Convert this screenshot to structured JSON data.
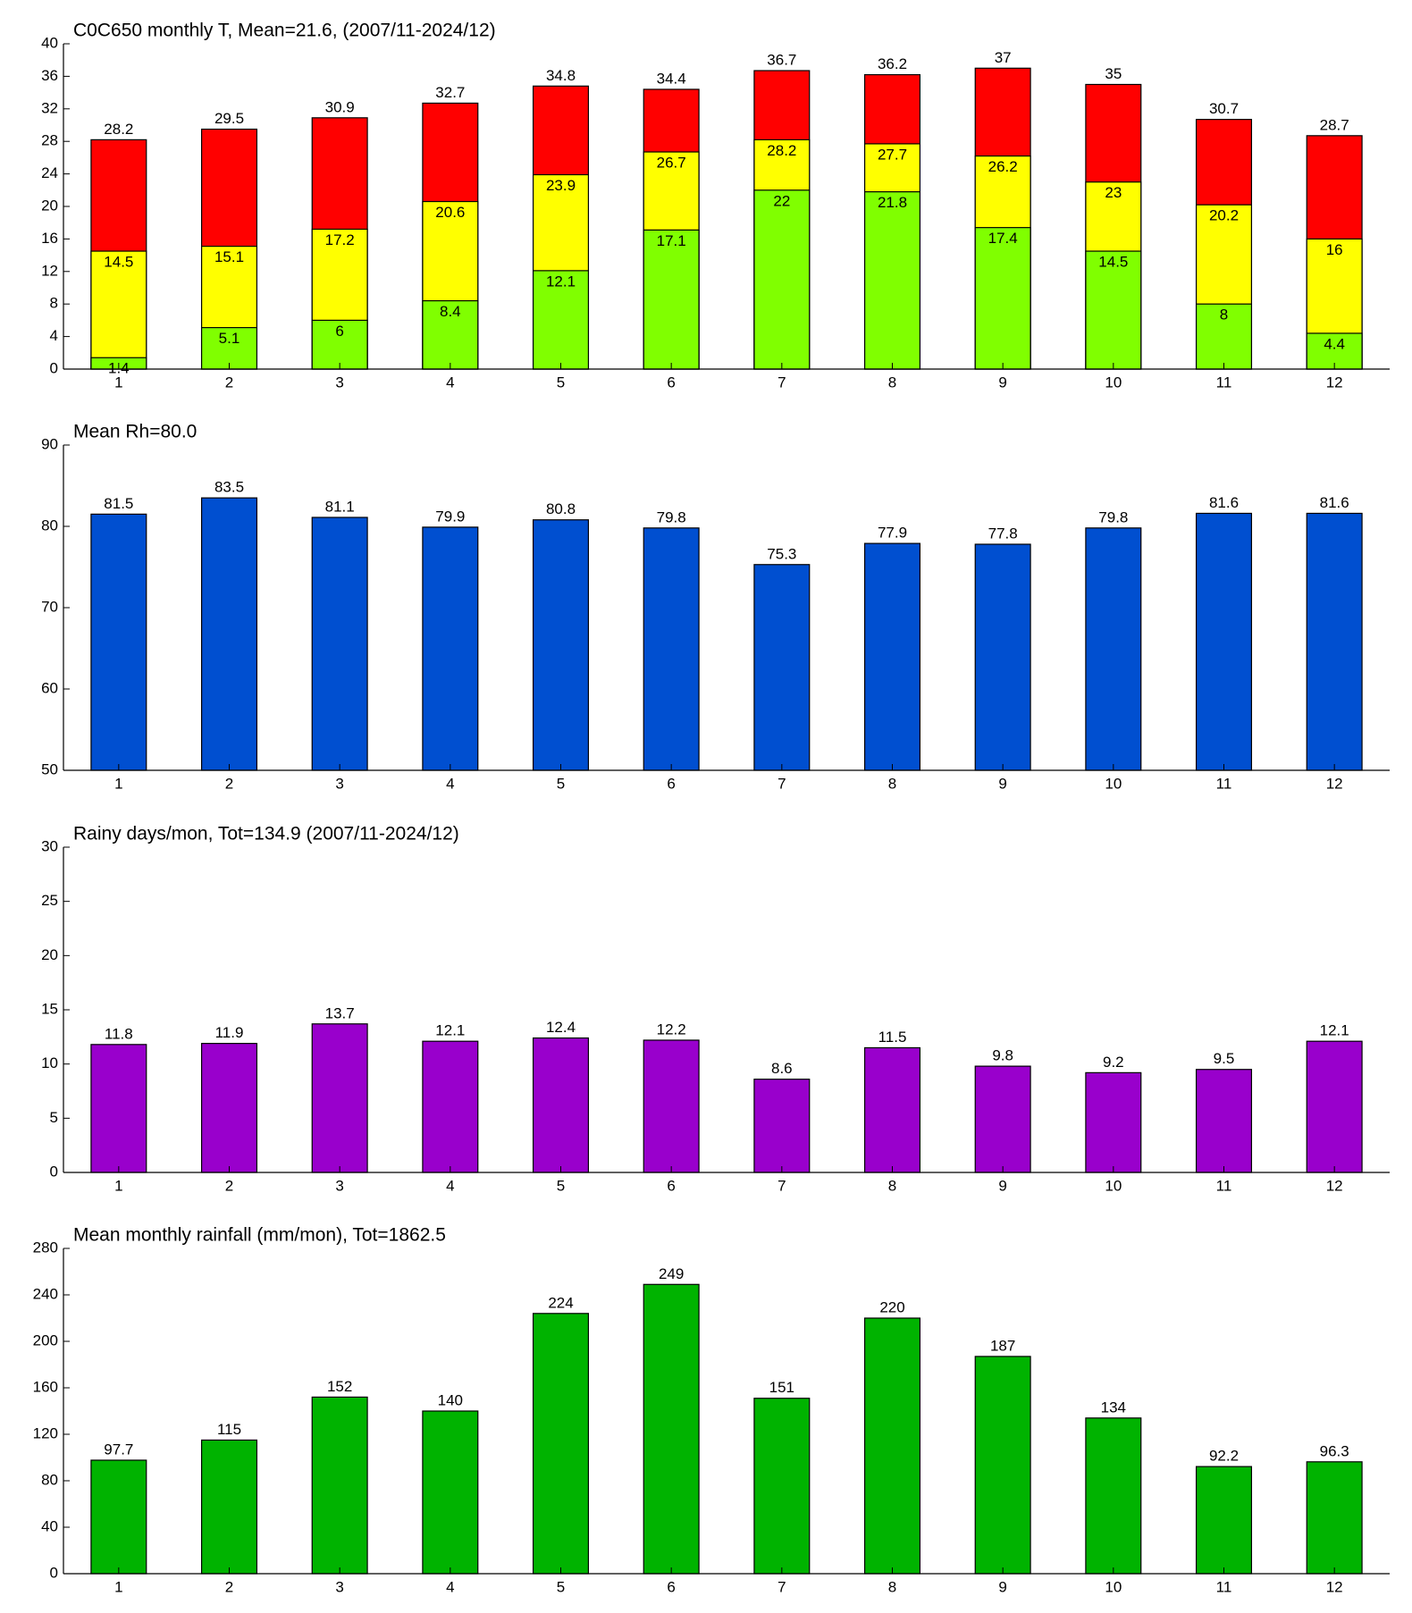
{
  "chart_data": [
    {
      "type": "bar",
      "barmode": "overlay",
      "title": "C0C650 monthly T, Mean=21.6, (2007/11-2024/12)",
      "categories": [
        "1",
        "2",
        "3",
        "4",
        "5",
        "6",
        "7",
        "8",
        "9",
        "10",
        "11",
        "12"
      ],
      "series": [
        {
          "color": "#80ff00",
          "values": [
            1.4,
            5.1,
            6,
            8.4,
            12.1,
            17.1,
            22,
            21.8,
            17.4,
            14.5,
            8,
            4.4
          ]
        },
        {
          "color": "#ffff00",
          "values": [
            14.5,
            15.1,
            17.2,
            20.6,
            23.9,
            26.7,
            28.2,
            27.7,
            26.2,
            23,
            20.2,
            16
          ]
        },
        {
          "color": "#ff0000",
          "values": [
            28.2,
            29.5,
            30.9,
            32.7,
            34.8,
            34.4,
            36.7,
            36.2,
            37,
            35,
            30.7,
            28.7
          ]
        }
      ],
      "ylim": [
        0,
        40
      ],
      "yticks": [
        0,
        4,
        8,
        12,
        16,
        20,
        24,
        28,
        32,
        36,
        40
      ]
    },
    {
      "type": "bar",
      "title": "Mean Rh=80.0",
      "categories": [
        "1",
        "2",
        "3",
        "4",
        "5",
        "6",
        "7",
        "8",
        "9",
        "10",
        "11",
        "12"
      ],
      "series": [
        {
          "color": "#004fd0",
          "values": [
            81.5,
            83.5,
            81.1,
            79.9,
            80.8,
            79.8,
            75.3,
            77.9,
            77.8,
            79.8,
            81.6,
            81.6
          ]
        }
      ],
      "ylim": [
        50,
        90
      ],
      "yticks": [
        50,
        60,
        70,
        80,
        90
      ]
    },
    {
      "type": "bar",
      "title": "Rainy days/mon, Tot=134.9 (2007/11-2024/12)",
      "categories": [
        "1",
        "2",
        "3",
        "4",
        "5",
        "6",
        "7",
        "8",
        "9",
        "10",
        "11",
        "12"
      ],
      "series": [
        {
          "color": "#9900cc",
          "values": [
            11.8,
            11.9,
            13.7,
            12.1,
            12.4,
            12.2,
            8.6,
            11.5,
            9.8,
            9.2,
            9.5,
            12.1
          ]
        }
      ],
      "ylim": [
        0,
        30
      ],
      "yticks": [
        0,
        5,
        10,
        15,
        20,
        25,
        30
      ]
    },
    {
      "type": "bar",
      "title": "Mean monthly rainfall (mm/mon), Tot=1862.5",
      "categories": [
        "1",
        "2",
        "3",
        "4",
        "5",
        "6",
        "7",
        "8",
        "9",
        "10",
        "11",
        "12"
      ],
      "series": [
        {
          "color": "#00b300",
          "values": [
            97.7,
            115,
            152,
            140,
            224,
            249,
            151,
            220,
            187,
            134,
            92.2,
            96.3
          ]
        }
      ],
      "ylim": [
        0,
        280
      ],
      "yticks": [
        0,
        40,
        80,
        120,
        160,
        200,
        240,
        280
      ]
    }
  ]
}
